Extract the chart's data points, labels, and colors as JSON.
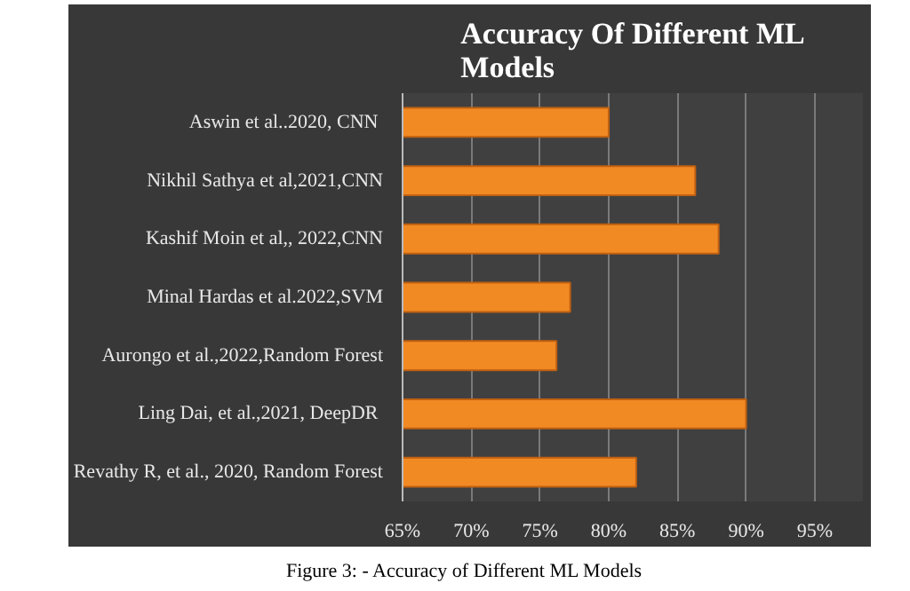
{
  "chart_data": {
    "type": "bar",
    "orientation": "horizontal",
    "title": "Accuracy Of Different ML\nModels",
    "categories": [
      "Aswin  et al..2020, CNN",
      "Nikhil Sathya et al,2021,CNN",
      "Kashif Moin et al,, 2022,CNN",
      "Minal Hardas et al.2022,SVM",
      "Aurongo et al.,2022,Random Forest",
      "Ling Dai, et al.,2021,  DeepDR",
      "Revathy R, et al., 2020, Random Forest"
    ],
    "values": [
      80,
      86.3,
      88,
      77.2,
      76.2,
      90,
      82
    ],
    "color": "#f28a24",
    "xlim": [
      65,
      98.5
    ],
    "xticks": [
      {
        "value": 65,
        "label": "65%"
      },
      {
        "value": 70,
        "label": "70%"
      },
      {
        "value": 75,
        "label": "75%"
      },
      {
        "value": 80,
        "label": "80%"
      },
      {
        "value": 85,
        "label": "85%"
      },
      {
        "value": 90,
        "label": "90%"
      },
      {
        "value": 95,
        "label": "95%"
      }
    ],
    "grid": "x",
    "annotations": [
      "Figure 3: - Accuracy of Different ML Models"
    ]
  }
}
